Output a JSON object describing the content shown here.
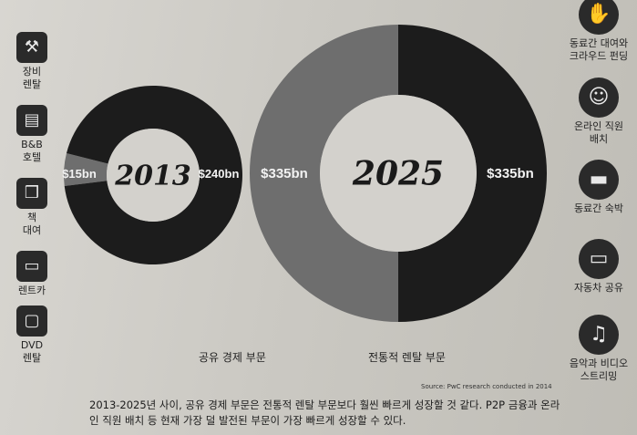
{
  "left_icons": [
    {
      "name": "equipment-icon",
      "glyph": "⚒",
      "label": "장비\n렌탈"
    },
    {
      "name": "bed-icon",
      "glyph": "▤",
      "label": "B&B\n호텔"
    },
    {
      "name": "book-icon",
      "glyph": "❒",
      "label": "책\n대여"
    },
    {
      "name": "car-icon",
      "glyph": "▭",
      "label": "렌트카"
    },
    {
      "name": "monitor-icon",
      "glyph": "▢",
      "label": "DVD\n렌탈"
    }
  ],
  "right_icons": [
    {
      "name": "handshake-icon",
      "glyph": "✋",
      "label": "동료간 대여와\n크라우드 펀딩"
    },
    {
      "name": "people-icon",
      "glyph": "☺",
      "label": "온라인 직원\n배치"
    },
    {
      "name": "bed-icon",
      "glyph": "▬",
      "label": "동료간 숙박"
    },
    {
      "name": "car-icon",
      "glyph": "▭",
      "label": "자동차 공유"
    },
    {
      "name": "music-note-icon",
      "glyph": "♫",
      "label": "음악과 비디오\n스트리밍"
    }
  ],
  "colors": {
    "sharing": "#6e6e6e",
    "traditional": "#1c1c1c"
  },
  "chart_data": [
    {
      "type": "pie",
      "donut": true,
      "center_label": "2013",
      "slices": [
        {
          "label": "공유 경제 부문",
          "value": 15,
          "display": "$15bn"
        },
        {
          "label": "전통적 렌탈 부문",
          "value": 240,
          "display": "$240bn"
        }
      ]
    },
    {
      "type": "pie",
      "donut": true,
      "center_label": "2025",
      "slices": [
        {
          "label": "공유 경제 부문",
          "value": 335,
          "display": "$335bn"
        },
        {
          "label": "전통적 렌탈 부문",
          "value": 335,
          "display": "$335bn"
        }
      ]
    }
  ],
  "legend": {
    "sharing": "공유 경제 부문",
    "traditional": "전통적 렌탈 부문"
  },
  "source": "Source: PwC research conducted in 2014",
  "caption": "2013-2025년 사이, 공유 경제 부문은 전통적 렌탈 부문보다 훨씬 빠르게 성장할 것 같다. P2P 금융과 온라인 직원 배치 등 현재 가장 덜 발전된 부문이 가장 빠르게 성장할 수 있다."
}
